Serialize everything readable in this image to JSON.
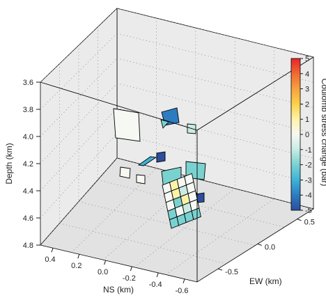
{
  "chart_data": {
    "type": "3d-patch",
    "title": "",
    "zlabel": "Depth (km)",
    "xlabel": "NS (km)",
    "ylabel": "EW (km)",
    "z_ticks": [
      "3.6",
      "3.8",
      "4.0",
      "4.2",
      "4.4",
      "4.6",
      "4.8"
    ],
    "x_ticks": [
      "0.4",
      "0.2",
      "0.0",
      "-0.2",
      "-0.4",
      "-0.6"
    ],
    "y_ticks": [
      "-0.5",
      "0.0",
      "0.5"
    ],
    "colorbar": {
      "label": "Coulomb stress change (bar)",
      "ticks": [
        "5",
        "4",
        "3",
        "2",
        "1",
        "0",
        "-1",
        "-2",
        "-3",
        "-4",
        "-5"
      ],
      "range": [
        -5,
        5
      ],
      "colors": [
        "#e8232a",
        "#f06a33",
        "#f7a13f",
        "#fbd14c",
        "#fdf3a8",
        "#f6f8f4",
        "#c9ebe4",
        "#79d2d0",
        "#3fb2d6",
        "#2d7cc0",
        "#2c4e9c"
      ]
    },
    "grid": true,
    "patches_stress_bar": [
      0.0,
      0.0,
      -0.4,
      -2.5,
      -3.5,
      -1.9,
      -0.5,
      -1.8,
      -4.8,
      -1.9,
      -1.9,
      -4.8
    ],
    "fault_grid_stress_bar": [
      [
        0.0,
        0.6,
        0.2,
        0.0
      ],
      [
        0.3,
        1.4,
        -0.5,
        0.0
      ],
      [
        0.0,
        -1.6,
        0.8,
        -0.4
      ],
      [
        -1.5,
        0.0,
        -1.3,
        -0.3
      ],
      [
        -1.7,
        -1.6,
        -1.8,
        -1.5
      ]
    ]
  }
}
